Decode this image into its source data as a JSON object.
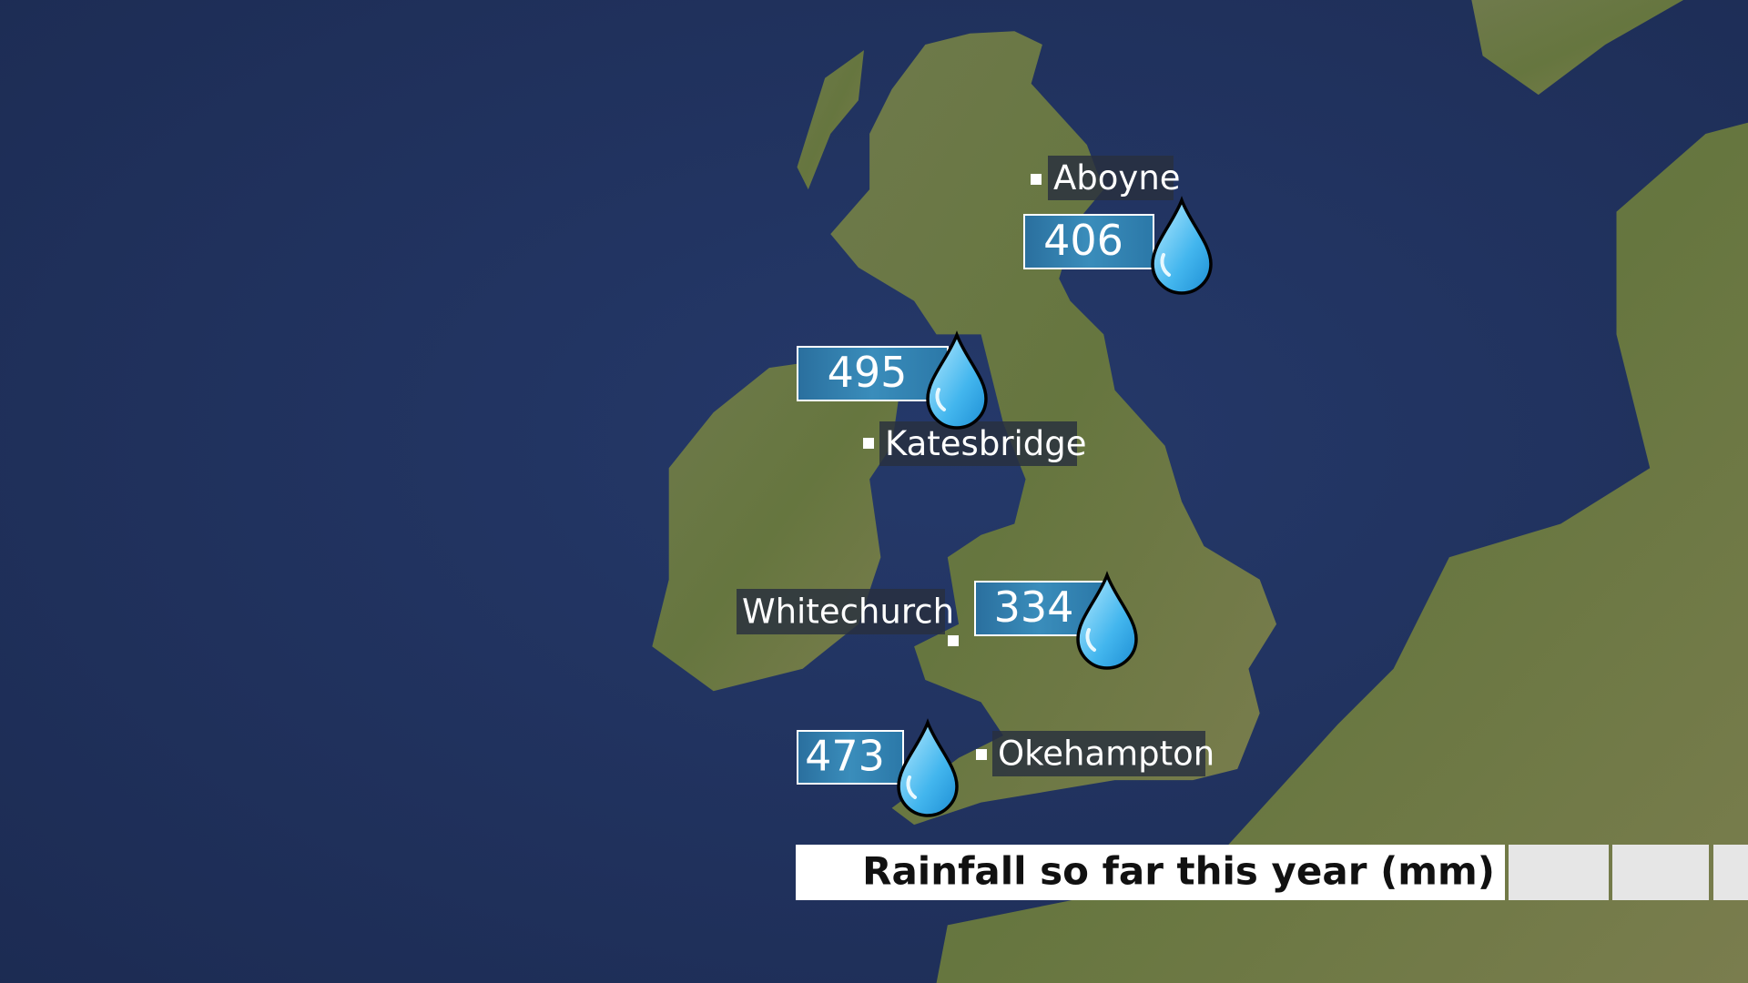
{
  "title": "Rainfall so far this year (mm)",
  "stations": [
    {
      "name": "Aboyne",
      "value": 406
    },
    {
      "name": "Katesbridge",
      "value": 495
    },
    {
      "name": "Whitechurch",
      "value": 334
    },
    {
      "name": "Okehampton",
      "value": 473
    }
  ]
}
